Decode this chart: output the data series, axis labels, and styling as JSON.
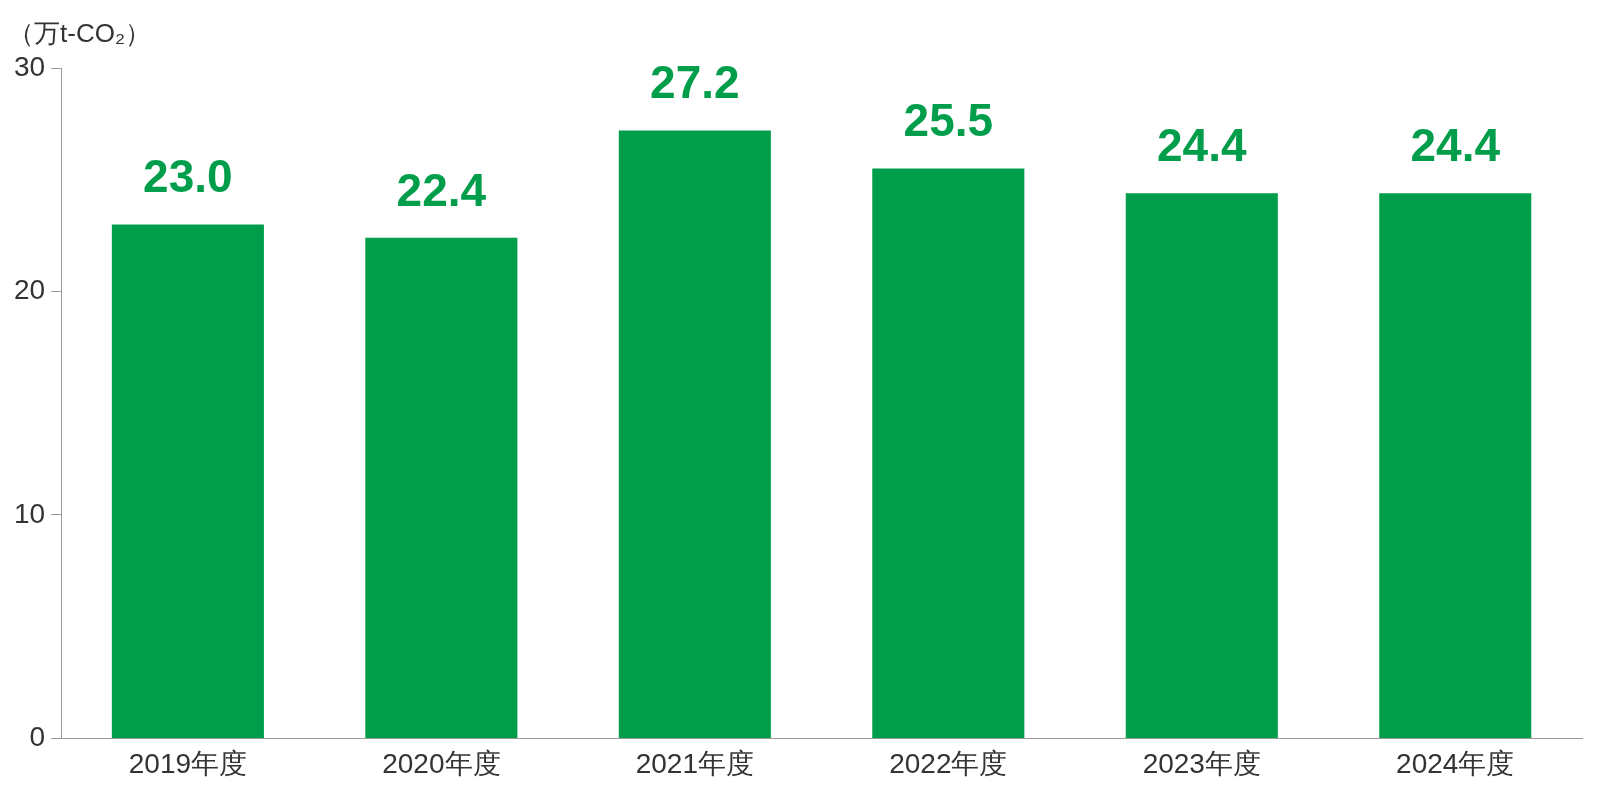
{
  "chart_data": {
    "type": "bar",
    "ylabel": "（万t-CO₂）",
    "categories": [
      "2019年度",
      "2020年度",
      "2021年度",
      "2022年度",
      "2023年度",
      "2024年度"
    ],
    "values": [
      23.0,
      22.4,
      27.2,
      25.5,
      24.4,
      24.4
    ],
    "value_labels": [
      "23.0",
      "22.4",
      "27.2",
      "25.5",
      "24.4",
      "24.4"
    ],
    "color": "#009e4a",
    "ylim": [
      0,
      30
    ],
    "yticks": [
      0,
      10,
      20,
      30
    ],
    "grid": false,
    "legend": false
  }
}
